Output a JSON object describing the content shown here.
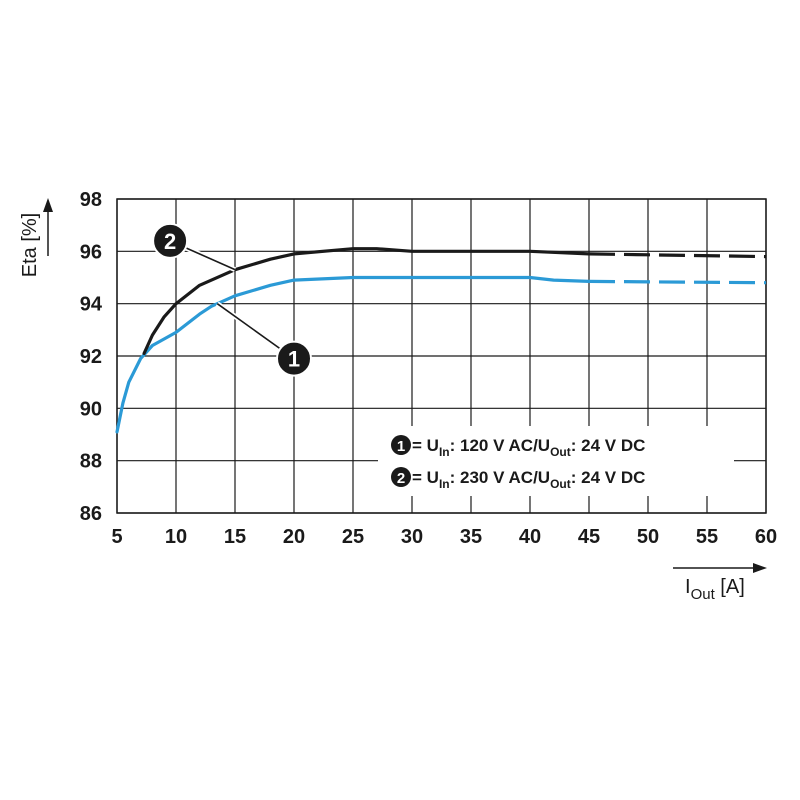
{
  "chart_data": {
    "type": "line",
    "xlabel": {
      "main": "I",
      "sub": "Out",
      "unit": " [A]"
    },
    "ylabel": "Eta [%]",
    "xlim": [
      5,
      60
    ],
    "ylim": [
      86,
      98
    ],
    "x_ticks": [
      "5",
      "10",
      "15",
      "20",
      "25",
      "30",
      "35",
      "40",
      "45",
      "50",
      "55",
      "60"
    ],
    "y_ticks": [
      "86",
      "88",
      "90",
      "92",
      "94",
      "96",
      "98"
    ],
    "grid": true,
    "colors": {
      "series1": "#2b9ad6",
      "series2": "#1a1a1a"
    },
    "series": [
      {
        "name": "1",
        "color": "#2b9ad6",
        "solid": [
          [
            5,
            89.1
          ],
          [
            5.5,
            90.2
          ],
          [
            6,
            91.0
          ],
          [
            7,
            91.9
          ],
          [
            8,
            92.4
          ],
          [
            10,
            92.9
          ],
          [
            12,
            93.6
          ],
          [
            13,
            93.9
          ],
          [
            15,
            94.3
          ],
          [
            18,
            94.7
          ],
          [
            20,
            94.9
          ],
          [
            25,
            95.0
          ],
          [
            30,
            95.0
          ],
          [
            35,
            95.0
          ],
          [
            40,
            95.0
          ],
          [
            42,
            94.9
          ],
          [
            45,
            94.85
          ]
        ],
        "dashed": [
          [
            45,
            94.85
          ],
          [
            60,
            94.8
          ]
        ]
      },
      {
        "name": "2",
        "color": "#1a1a1a",
        "solid": [
          [
            7.3,
            92.1
          ],
          [
            8,
            92.8
          ],
          [
            9,
            93.5
          ],
          [
            10,
            94.0
          ],
          [
            12,
            94.7
          ],
          [
            15,
            95.3
          ],
          [
            18,
            95.7
          ],
          [
            20,
            95.9
          ],
          [
            25,
            96.1
          ],
          [
            27,
            96.1
          ],
          [
            30,
            96.0
          ],
          [
            40,
            96.0
          ],
          [
            45,
            95.9
          ]
        ],
        "dashed": [
          [
            45,
            95.9
          ],
          [
            60,
            95.8
          ]
        ]
      }
    ],
    "badges": [
      {
        "text": "1",
        "series": "1",
        "at": [
          13.5,
          94.0
        ],
        "label_pos": [
          20,
          91.9
        ]
      },
      {
        "text": "2",
        "series": "2",
        "at": [
          15,
          95.3
        ],
        "label_pos": [
          9.5,
          96.4
        ]
      }
    ],
    "legend": {
      "placement": "bottom-right",
      "items": [
        {
          "badge": "1",
          "prefix": " = U",
          "sub1": "In",
          "mid": ": 120 V AC/U",
          "sub2": "Out",
          "suffix": ": 24 V DC"
        },
        {
          "badge": "2",
          "prefix": " = U",
          "sub1": "In",
          "mid": ": 230 V AC/U",
          "sub2": "Out",
          "suffix": ": 24 V DC"
        }
      ]
    }
  }
}
